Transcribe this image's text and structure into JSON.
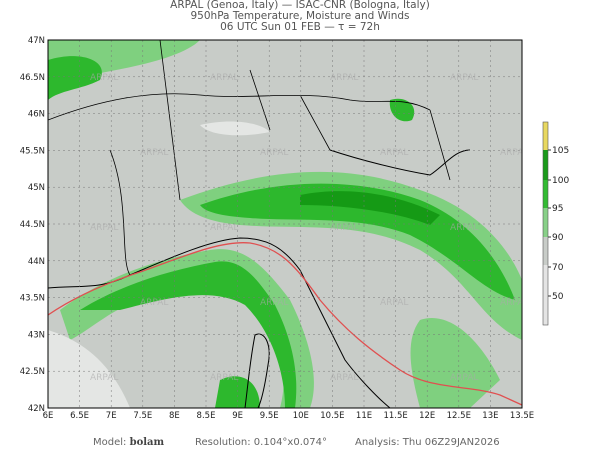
{
  "header": {
    "line1": "ARPAL (Genoa, Italy)  —  ISAC-CNR (Bologna, Italy)",
    "line2": "950hPa Temperature, Moisture and Winds",
    "line3": "06 UTC Sun 01 FEB  —  τ = 72h"
  },
  "map": {
    "lon_labels": [
      "6E",
      "6.5E",
      "7E",
      "7.5E",
      "8E",
      "8.5E",
      "9E",
      "9.5E",
      "10E",
      "10.5E",
      "11E",
      "11.5E",
      "12E",
      "12.5E",
      "13E",
      "13.5E"
    ],
    "lat_labels": [
      "42N",
      "42.5N",
      "43N",
      "43.5N",
      "44N",
      "44.5N",
      "45N",
      "45.5N",
      "46N",
      "46.5N",
      "47N"
    ],
    "lon_range": [
      6,
      13.5
    ],
    "lat_range": [
      42,
      47
    ],
    "watermark": "ARPAL",
    "colors": {
      "background": "#c8ccc8",
      "light_green": "#7fd07f",
      "green": "#2db82d",
      "dark_green": "#159a15",
      "coast": "#000000",
      "isotherm": "#e05050"
    }
  },
  "colorbar": {
    "labels": [
      "105",
      "100",
      "95",
      "90",
      "70",
      "50"
    ],
    "colors": [
      "#e8d860",
      "#1a9a1a",
      "#33bb33",
      "#88d088",
      "#c8ccc8",
      "#e4e4e4"
    ]
  },
  "footer": {
    "model_label": "Model:",
    "model": "bolam",
    "resolution": "Resolution: 0.104°x0.074°",
    "analysis": "Analysis: Thu  06Z29JAN2026"
  }
}
